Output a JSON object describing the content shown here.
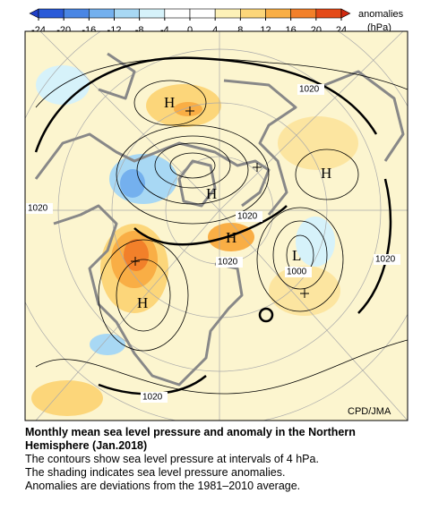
{
  "colorbar": {
    "label": "anomalies",
    "unit": "(hPa)",
    "ticks": [
      -24,
      -20,
      -16,
      -12,
      -8,
      -4,
      0,
      4,
      8,
      12,
      16,
      20,
      24
    ],
    "colors": [
      "#1f3fc8",
      "#2a5ad8",
      "#4a86e4",
      "#74b0ee",
      "#a8d8f4",
      "#d6f2fa",
      "#ffffff",
      "#ffffff",
      "#fdf1b8",
      "#fcd67a",
      "#f9ae45",
      "#f2802a",
      "#e44a18",
      "#d22a10"
    ]
  },
  "map": {
    "labels": [
      "H",
      "H",
      "H",
      "H",
      "L",
      "H",
      "1020",
      "1020",
      "1020",
      "1020",
      "1000",
      "1020",
      "1020"
    ],
    "credit": "CPD/JMA"
  },
  "caption": {
    "title": "Monthly mean sea level pressure and anomaly in the Northern Hemisphere (Jan.2018)",
    "notes": [
      "The contours show sea level pressure at intervals of 4 hPa.",
      "The shading indicates sea level pressure anomalies.",
      "Anomalies are deviations from the 1981–2010 average."
    ]
  }
}
